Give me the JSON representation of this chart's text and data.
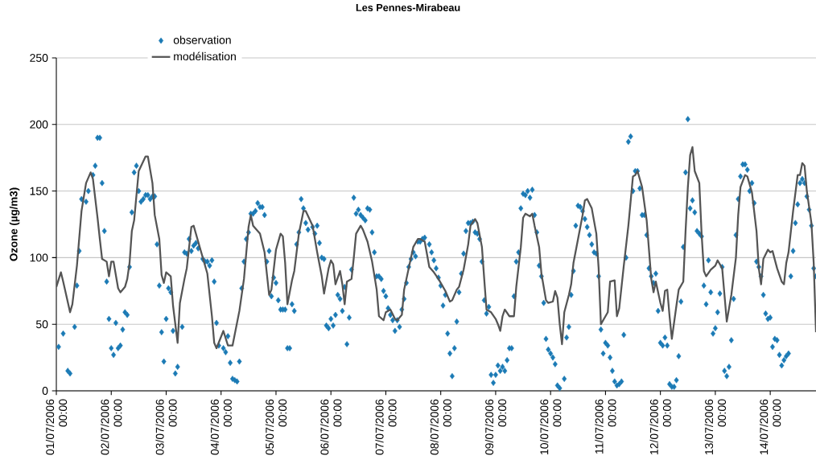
{
  "chart_data": {
    "type": "line",
    "title": "Les Pennes-Mirabeau",
    "ylabel": "Ozone (µg/m3)",
    "xlim": [
      "2006-07-01T00:00",
      "2006-07-14T20:00"
    ],
    "ylim": [
      0,
      250
    ],
    "xticks": [
      {
        "value": "2006-07-01T00:00",
        "label": "01/07/2006 00:00"
      },
      {
        "value": "2006-07-02T00:00",
        "label": "02/07/2006 00:00"
      },
      {
        "value": "2006-07-03T00:00",
        "label": "03/07/2006 00:00"
      },
      {
        "value": "2006-07-04T00:00",
        "label": "04/07/2006 00:00"
      },
      {
        "value": "2006-07-05T00:00",
        "label": "05/07/2006 00:00"
      },
      {
        "value": "2006-07-06T00:00",
        "label": "06/07/2006 00:00"
      },
      {
        "value": "2006-07-07T00:00",
        "label": "07/07/2006 00:00"
      },
      {
        "value": "2006-07-08T00:00",
        "label": "08/07/2006 00:00"
      },
      {
        "value": "2006-07-09T00:00",
        "label": "09/07/2006 00:00"
      },
      {
        "value": "2006-07-10T00:00",
        "label": "10/07/2006 00:00"
      },
      {
        "value": "2006-07-11T00:00",
        "label": "11/07/2006 00:00"
      },
      {
        "value": "2006-07-12T00:00",
        "label": "12/07/2006 00:00"
      },
      {
        "value": "2006-07-13T00:00",
        "label": "13/07/2006 00:00"
      },
      {
        "value": "2006-07-14T00:00",
        "label": "14/07/2006 00:00"
      }
    ],
    "yticks": [
      0,
      50,
      100,
      150,
      200,
      250
    ],
    "grid": "y",
    "legend": "top left",
    "series": [
      {
        "name": "observation",
        "type": "scatter",
        "marker": "diamond",
        "color": "#1b7ab5",
        "x": [
          "2006-07-01T01:00",
          "2006-07-01T03:00",
          "2006-07-01T05:00",
          "2006-07-01T06:00",
          "2006-07-01T08:00",
          "2006-07-01T09:00",
          "2006-07-01T10:00",
          "2006-07-01T11:00",
          "2006-07-01T13:00",
          "2006-07-01T14:00",
          "2006-07-01T16:00",
          "2006-07-01T17:00",
          "2006-07-01T18:00",
          "2006-07-01T19:00",
          "2006-07-01T20:00",
          "2006-07-01T21:00",
          "2006-07-01T22:00",
          "2006-07-01T23:00",
          "2006-07-02T00:00",
          "2006-07-02T01:00",
          "2006-07-02T02:00",
          "2006-07-02T03:00",
          "2006-07-02T04:00",
          "2006-07-02T05:00",
          "2006-07-02T06:00",
          "2006-07-02T07:00",
          "2006-07-02T08:00",
          "2006-07-02T09:00",
          "2006-07-02T10:00",
          "2006-07-02T11:00",
          "2006-07-02T12:00",
          "2006-07-02T13:00",
          "2006-07-02T14:00",
          "2006-07-02T15:00",
          "2006-07-02T16:00",
          "2006-07-02T17:00",
          "2006-07-02T18:00",
          "2006-07-02T19:00",
          "2006-07-02T20:00",
          "2006-07-02T21:00",
          "2006-07-02T22:00",
          "2006-07-02T23:00",
          "2006-07-03T00:00",
          "2006-07-03T01:00",
          "2006-07-03T02:00",
          "2006-07-03T03:00",
          "2006-07-03T04:00",
          "2006-07-03T05:00",
          "2006-07-03T07:00",
          "2006-07-03T08:00",
          "2006-07-03T09:00",
          "2006-07-03T10:00",
          "2006-07-03T11:00",
          "2006-07-03T12:00",
          "2006-07-03T13:00",
          "2006-07-03T14:00",
          "2006-07-03T16:00",
          "2006-07-03T17:00",
          "2006-07-03T18:00",
          "2006-07-03T19:00",
          "2006-07-03T20:00",
          "2006-07-03T21:00",
          "2006-07-03T22:00",
          "2006-07-03T23:00",
          "2006-07-04T01:00",
          "2006-07-04T02:00",
          "2006-07-04T03:00",
          "2006-07-04T04:00",
          "2006-07-04T05:00",
          "2006-07-04T06:00",
          "2006-07-04T07:00",
          "2006-07-04T08:00",
          "2006-07-04T09:00",
          "2006-07-04T10:00",
          "2006-07-04T11:00",
          "2006-07-04T12:00",
          "2006-07-04T13:00",
          "2006-07-04T14:00",
          "2006-07-04T15:00",
          "2006-07-04T16:00",
          "2006-07-04T17:00",
          "2006-07-04T18:00",
          "2006-07-04T19:00",
          "2006-07-04T20:00",
          "2006-07-04T21:00",
          "2006-07-04T22:00",
          "2006-07-04T23:00",
          "2006-07-05T00:00",
          "2006-07-05T01:00",
          "2006-07-05T02:00",
          "2006-07-05T03:00",
          "2006-07-05T04:00",
          "2006-07-05T05:00",
          "2006-07-05T06:00",
          "2006-07-05T07:00",
          "2006-07-05T08:00",
          "2006-07-05T09:00",
          "2006-07-05T10:00",
          "2006-07-05T11:00",
          "2006-07-05T12:00",
          "2006-07-05T13:00",
          "2006-07-05T14:00",
          "2006-07-05T16:00",
          "2006-07-05T17:00",
          "2006-07-05T18:00",
          "2006-07-05T19:00",
          "2006-07-05T20:00",
          "2006-07-05T21:00",
          "2006-07-05T22:00",
          "2006-07-05T23:00",
          "2006-07-06T00:00",
          "2006-07-06T01:00",
          "2006-07-06T02:00",
          "2006-07-06T03:00",
          "2006-07-06T04:00",
          "2006-07-06T05:00",
          "2006-07-06T06:00",
          "2006-07-06T07:00",
          "2006-07-06T08:00",
          "2006-07-06T09:00",
          "2006-07-06T10:00",
          "2006-07-06T11:00",
          "2006-07-06T12:00",
          "2006-07-06T13:00",
          "2006-07-06T14:00",
          "2006-07-06T15:00",
          "2006-07-06T16:00",
          "2006-07-06T17:00",
          "2006-07-06T18:00",
          "2006-07-06T19:00",
          "2006-07-06T20:00",
          "2006-07-06T21:00",
          "2006-07-06T22:00",
          "2006-07-06T23:00",
          "2006-07-07T00:00",
          "2006-07-07T01:00",
          "2006-07-07T02:00",
          "2006-07-07T03:00",
          "2006-07-07T04:00",
          "2006-07-07T05:00",
          "2006-07-07T06:00",
          "2006-07-07T07:00",
          "2006-07-07T08:00",
          "2006-07-07T09:00",
          "2006-07-07T10:00",
          "2006-07-07T11:00",
          "2006-07-07T12:00",
          "2006-07-07T13:00",
          "2006-07-07T14:00",
          "2006-07-07T15:00",
          "2006-07-07T16:00",
          "2006-07-07T17:00",
          "2006-07-07T19:00",
          "2006-07-07T20:00",
          "2006-07-07T21:00",
          "2006-07-07T22:00",
          "2006-07-07T23:00",
          "2006-07-08T00:00",
          "2006-07-08T01:00",
          "2006-07-08T02:00",
          "2006-07-08T03:00",
          "2006-07-08T04:00",
          "2006-07-08T05:00",
          "2006-07-08T06:00",
          "2006-07-08T07:00",
          "2006-07-08T08:00",
          "2006-07-08T09:00",
          "2006-07-08T10:00",
          "2006-07-08T11:00",
          "2006-07-08T12:00",
          "2006-07-08T13:00",
          "2006-07-08T14:00",
          "2006-07-08T15:00",
          "2006-07-08T16:00",
          "2006-07-08T17:00",
          "2006-07-08T18:00",
          "2006-07-08T19:00",
          "2006-07-08T20:00",
          "2006-07-08T21:00",
          "2006-07-08T22:00",
          "2006-07-08T23:00",
          "2006-07-09T00:00",
          "2006-07-09T01:00",
          "2006-07-09T02:00",
          "2006-07-09T03:00",
          "2006-07-09T04:00",
          "2006-07-09T05:00",
          "2006-07-09T06:00",
          "2006-07-09T07:00",
          "2006-07-09T08:00",
          "2006-07-09T09:00",
          "2006-07-09T10:00",
          "2006-07-09T11:00",
          "2006-07-09T12:00",
          "2006-07-09T13:00",
          "2006-07-09T14:00",
          "2006-07-09T15:00",
          "2006-07-09T16:00",
          "2006-07-09T17:00",
          "2006-07-09T18:00",
          "2006-07-09T19:00",
          "2006-07-09T20:00",
          "2006-07-09T21:00",
          "2006-07-09T22:00",
          "2006-07-09T23:00",
          "2006-07-10T00:00",
          "2006-07-10T01:00",
          "2006-07-10T02:00",
          "2006-07-10T03:00",
          "2006-07-10T04:00",
          "2006-07-10T06:00",
          "2006-07-10T07:00",
          "2006-07-10T08:00",
          "2006-07-10T09:00",
          "2006-07-10T10:00",
          "2006-07-10T11:00",
          "2006-07-10T12:00",
          "2006-07-10T13:00",
          "2006-07-10T14:00",
          "2006-07-10T15:00",
          "2006-07-10T16:00",
          "2006-07-10T17:00",
          "2006-07-10T18:00",
          "2006-07-10T19:00",
          "2006-07-10T20:00",
          "2006-07-10T21:00",
          "2006-07-10T22:00",
          "2006-07-10T23:00",
          "2006-07-11T00:00",
          "2006-07-11T01:00",
          "2006-07-11T02:00",
          "2006-07-11T03:00",
          "2006-07-11T04:00",
          "2006-07-11T05:00",
          "2006-07-11T06:00",
          "2006-07-11T07:00",
          "2006-07-11T08:00",
          "2006-07-11T09:00",
          "2006-07-11T10:00",
          "2006-07-11T11:00",
          "2006-07-11T12:00",
          "2006-07-11T13:00",
          "2006-07-11T14:00",
          "2006-07-11T15:00",
          "2006-07-11T16:00",
          "2006-07-11T17:00",
          "2006-07-11T18:00",
          "2006-07-11T19:00",
          "2006-07-11T20:00",
          "2006-07-11T21:00",
          "2006-07-11T22:00",
          "2006-07-11T23:00",
          "2006-07-12T00:00",
          "2006-07-12T01:00",
          "2006-07-12T02:00",
          "2006-07-12T03:00",
          "2006-07-12T04:00",
          "2006-07-12T05:00",
          "2006-07-12T06:00",
          "2006-07-12T07:00",
          "2006-07-12T08:00",
          "2006-07-12T09:00",
          "2006-07-12T10:00",
          "2006-07-12T11:00",
          "2006-07-12T12:00",
          "2006-07-12T13:00",
          "2006-07-12T14:00",
          "2006-07-12T15:00",
          "2006-07-12T16:00",
          "2006-07-12T17:00",
          "2006-07-12T18:00",
          "2006-07-12T19:00",
          "2006-07-12T20:00",
          "2006-07-12T21:00",
          "2006-07-12T22:00",
          "2006-07-12T23:00",
          "2006-07-13T00:00",
          "2006-07-13T01:00",
          "2006-07-13T02:00",
          "2006-07-13T03:00",
          "2006-07-13T04:00",
          "2006-07-13T05:00",
          "2006-07-13T06:00",
          "2006-07-13T07:00",
          "2006-07-13T08:00",
          "2006-07-13T09:00",
          "2006-07-13T10:00",
          "2006-07-13T11:00",
          "2006-07-13T12:00",
          "2006-07-13T13:00",
          "2006-07-13T14:00",
          "2006-07-13T15:00",
          "2006-07-13T16:00",
          "2006-07-13T17:00",
          "2006-07-13T18:00",
          "2006-07-13T19:00",
          "2006-07-13T20:00",
          "2006-07-13T21:00",
          "2006-07-13T22:00",
          "2006-07-13T23:00",
          "2006-07-14T00:00",
          "2006-07-14T01:00",
          "2006-07-14T02:00",
          "2006-07-14T03:00",
          "2006-07-14T04:00",
          "2006-07-14T05:00",
          "2006-07-14T06:00",
          "2006-07-14T07:00",
          "2006-07-14T08:00",
          "2006-07-14T09:00",
          "2006-07-14T10:00",
          "2006-07-14T11:00",
          "2006-07-14T12:00",
          "2006-07-14T13:00",
          "2006-07-14T14:00",
          "2006-07-14T15:00",
          "2006-07-14T16:00",
          "2006-07-14T17:00",
          "2006-07-14T18:00",
          "2006-07-14T19:00",
          "2006-07-14T20:00"
        ],
        "values": [
          33,
          43,
          15,
          13,
          48,
          79,
          105,
          144,
          142,
          150,
          162,
          169,
          190,
          190,
          156,
          120,
          82,
          54,
          32,
          27,
          51,
          32,
          34,
          46,
          59,
          57,
          93,
          134,
          164,
          169,
          150,
          142,
          144,
          147,
          147,
          144,
          146,
          146,
          110,
          79,
          44,
          22,
          54,
          77,
          74,
          45,
          13,
          18,
          48,
          104,
          103,
          114,
          105,
          109,
          111,
          107,
          99,
          97,
          97,
          94,
          98,
          82,
          51,
          34,
          32,
          29,
          41,
          21,
          9,
          8,
          7,
          22,
          77,
          97,
          114,
          119,
          133,
          133,
          135,
          141,
          138,
          138,
          132,
          97,
          105,
          71,
          85,
          81,
          68,
          61,
          61,
          61,
          32,
          32,
          65,
          60,
          110,
          119,
          144,
          137,
          126,
          121,
          123,
          118,
          124,
          111,
          100,
          99,
          49,
          47,
          54,
          49,
          57,
          72,
          69,
          60,
          78,
          35,
          55,
          91,
          145,
          133,
          136,
          132,
          130,
          128,
          137,
          136,
          119,
          104,
          86,
          86,
          84,
          75,
          71,
          62,
          57,
          53,
          45,
          53,
          48,
          61,
          69,
          81,
          93,
          99,
          104,
          101,
          112,
          112,
          114,
          115,
          110,
          104,
          98,
          92,
          85,
          79,
          64,
          72,
          43,
          28,
          11,
          32,
          52,
          74,
          88,
          103,
          120,
          126,
          126,
          127,
          119,
          118,
          114,
          97,
          68,
          58,
          63,
          12,
          6,
          12,
          19,
          15,
          18,
          15,
          23,
          32,
          32,
          71,
          97,
          104,
          137,
          148,
          147,
          150,
          145,
          151,
          132,
          119,
          94,
          86,
          66,
          39,
          31,
          28,
          25,
          20,
          4,
          2,
          9,
          40,
          48,
          72,
          90,
          124,
          139,
          138,
          135,
          129,
          123,
          117,
          110,
          104,
          103,
          86,
          46,
          28,
          36,
          34,
          25,
          15,
          7,
          4,
          5,
          7,
          42,
          100,
          187,
          191,
          150,
          165,
          165,
          152,
          132,
          132,
          117,
          92,
          86,
          81,
          88,
          60,
          36,
          34,
          40,
          34,
          5,
          3,
          3,
          8,
          26,
          67,
          108,
          164,
          204,
          137,
          143,
          134,
          120,
          118,
          116,
          79,
          65,
          98,
          74,
          43,
          47,
          59,
          73,
          93,
          15,
          11,
          18,
          38,
          69,
          117,
          144,
          161,
          170,
          170,
          166,
          150,
          156,
          141,
          97,
          93,
          86,
          72,
          58,
          54,
          55,
          33,
          39,
          38,
          27,
          19,
          23,
          26,
          28,
          86,
          105,
          126,
          140,
          156,
          159,
          156,
          146,
          136,
          124,
          92,
          86
        ]
      },
      {
        "name": "modélisation",
        "type": "line",
        "line_style": "solid",
        "color": "#555555",
        "x": [
          "2006-07-01T00:00",
          "2006-07-01T02:00",
          "2006-07-01T03:00",
          "2006-07-01T06:00",
          "2006-07-01T07:00",
          "2006-07-01T09:00",
          "2006-07-01T11:00",
          "2006-07-01T13:00",
          "2006-07-01T15:00",
          "2006-07-01T16:00",
          "2006-07-01T18:00",
          "2006-07-01T19:00",
          "2006-07-01T20:00",
          "2006-07-01T22:00",
          "2006-07-01T23:00",
          "2006-07-02T00:00",
          "2006-07-02T01:00",
          "2006-07-02T03:00",
          "2006-07-02T04:00",
          "2006-07-02T06:00",
          "2006-07-02T07:00",
          "2006-07-02T08:00",
          "2006-07-02T09:00",
          "2006-07-02T10:00",
          "2006-07-02T12:00",
          "2006-07-02T15:00",
          "2006-07-02T16:00",
          "2006-07-02T18:00",
          "2006-07-02T19:00",
          "2006-07-02T21:00",
          "2006-07-02T22:00",
          "2006-07-02T23:00",
          "2006-07-03T00:00",
          "2006-07-03T02:00",
          "2006-07-03T03:00",
          "2006-07-03T05:00",
          "2006-07-03T06:00",
          "2006-07-03T08:00",
          "2006-07-03T09:00",
          "2006-07-03T11:00",
          "2006-07-03T12:00",
          "2006-07-03T15:00",
          "2006-07-03T18:00",
          "2006-07-03T20:00",
          "2006-07-03T21:00",
          "2006-07-03T22:00",
          "2006-07-04T01:00",
          "2006-07-04T03:00",
          "2006-07-04T05:00",
          "2006-07-04T08:00",
          "2006-07-04T10:00",
          "2006-07-04T12:00",
          "2006-07-04T13:00",
          "2006-07-04T14:00",
          "2006-07-04T17:00",
          "2006-07-04T19:00",
          "2006-07-04T21:00",
          "2006-07-04T22:00",
          "2006-07-05T00:00",
          "2006-07-05T02:00",
          "2006-07-05T03:00",
          "2006-07-05T04:00",
          "2006-07-05T05:00",
          "2006-07-05T07:00",
          "2006-07-05T08:00",
          "2006-07-05T10:00",
          "2006-07-05T12:00",
          "2006-07-05T13:00",
          "2006-07-05T16:00",
          "2006-07-05T18:00",
          "2006-07-05T20:00",
          "2006-07-05T21:00",
          "2006-07-05T23:00",
          "2006-07-06T00:00",
          "2006-07-06T01:00",
          "2006-07-06T02:00",
          "2006-07-06T04:00",
          "2006-07-06T05:00",
          "2006-07-06T06:00",
          "2006-07-06T07:00",
          "2006-07-06T09:00",
          "2006-07-06T10:00",
          "2006-07-06T11:00",
          "2006-07-06T13:00",
          "2006-07-06T14:00",
          "2006-07-06T16:00",
          "2006-07-06T18:00",
          "2006-07-06T20:00",
          "2006-07-06T21:00",
          "2006-07-06T23:00",
          "2006-07-07T00:00",
          "2006-07-07T02:00",
          "2006-07-07T04:00",
          "2006-07-07T05:00",
          "2006-07-07T07:00",
          "2006-07-07T08:00",
          "2006-07-07T10:00",
          "2006-07-07T12:00",
          "2006-07-07T14:00",
          "2006-07-07T15:00",
          "2006-07-07T17:00",
          "2006-07-07T19:00",
          "2006-07-07T21:00",
          "2006-07-07T23:00",
          "2006-07-08T02:00",
          "2006-07-08T04:00",
          "2006-07-08T05:00",
          "2006-07-08T07:00",
          "2006-07-08T08:00",
          "2006-07-08T10:00",
          "2006-07-08T12:00",
          "2006-07-08T13:00",
          "2006-07-08T15:00",
          "2006-07-08T16:00",
          "2006-07-08T18:00",
          "2006-07-08T19:00",
          "2006-07-08T20:00",
          "2006-07-08T22:00",
          "2006-07-09T00:00",
          "2006-07-09T01:00",
          "2006-07-09T02:00",
          "2006-07-09T03:00",
          "2006-07-09T04:00",
          "2006-07-09T06:00",
          "2006-07-09T08:00",
          "2006-07-09T09:00",
          "2006-07-09T11:00",
          "2006-07-09T12:00",
          "2006-07-09T13:00",
          "2006-07-09T15:00",
          "2006-07-09T16:00",
          "2006-07-09T17:00",
          "2006-07-09T19:00",
          "2006-07-09T20:00",
          "2006-07-09T22:00",
          "2006-07-09T23:00",
          "2006-07-10T01:00",
          "2006-07-10T02:00",
          "2006-07-10T03:00",
          "2006-07-10T04:00",
          "2006-07-10T05:00",
          "2006-07-10T06:00",
          "2006-07-10T08:00",
          "2006-07-10T09:00",
          "2006-07-10T10:00",
          "2006-07-10T12:00",
          "2006-07-10T14:00",
          "2006-07-10T15:00",
          "2006-07-10T16:00",
          "2006-07-10T18:00",
          "2006-07-10T20:00",
          "2006-07-10T21:00",
          "2006-07-10T22:00",
          "2006-07-11T00:00",
          "2006-07-11T01:00",
          "2006-07-11T02:00",
          "2006-07-11T04:00",
          "2006-07-11T05:00",
          "2006-07-11T06:00",
          "2006-07-11T08:00",
          "2006-07-11T10:00",
          "2006-07-11T12:00",
          "2006-07-11T13:00",
          "2006-07-11T14:00",
          "2006-07-11T16:00",
          "2006-07-11T18:00",
          "2006-07-11T20:00",
          "2006-07-11T21:00",
          "2006-07-11T22:00",
          "2006-07-12T00:00",
          "2006-07-12T01:00",
          "2006-07-12T02:00",
          "2006-07-12T03:00",
          "2006-07-12T04:00",
          "2006-07-12T05:00",
          "2006-07-12T07:00",
          "2006-07-12T08:00",
          "2006-07-12T10:00",
          "2006-07-12T11:00",
          "2006-07-12T12:00",
          "2006-07-12T13:00",
          "2006-07-12T14:00",
          "2006-07-12T15:00",
          "2006-07-12T17:00",
          "2006-07-12T18:00",
          "2006-07-12T19:00",
          "2006-07-12T20:00",
          "2006-07-12T22:00",
          "2006-07-13T00:00",
          "2006-07-13T01:00",
          "2006-07-13T03:00",
          "2006-07-13T04:00",
          "2006-07-13T05:00",
          "2006-07-13T07:00",
          "2006-07-13T09:00",
          "2006-07-13T10:00",
          "2006-07-13T11:00",
          "2006-07-13T13:00",
          "2006-07-13T14:00",
          "2006-07-13T16:00",
          "2006-07-13T18:00",
          "2006-07-13T19:00",
          "2006-07-13T20:00",
          "2006-07-13T21:00",
          "2006-07-13T23:00",
          "2006-07-14T00:00",
          "2006-07-14T01:00",
          "2006-07-14T03:00",
          "2006-07-14T05:00",
          "2006-07-14T06:00",
          "2006-07-14T07:00",
          "2006-07-14T08:00",
          "2006-07-14T10:00",
          "2006-07-14T12:00",
          "2006-07-14T13:00",
          "2006-07-14T14:00",
          "2006-07-14T15:00",
          "2006-07-14T16:00",
          "2006-07-14T18:00",
          "2006-07-14T19:00",
          "2006-07-14T20:00"
        ],
        "values": [
          78,
          89,
          82,
          59,
          65,
          94,
          135,
          156,
          164,
          159,
          130,
          114,
          99,
          97,
          86,
          97,
          97,
          77,
          74,
          78,
          84,
          96,
          120,
          128,
          165,
          176,
          176,
          156,
          132,
          114,
          87,
          81,
          89,
          86,
          64,
          36,
          66,
          84,
          92,
          123,
          124,
          106,
          88,
          56,
          36,
          32,
          45,
          34,
          34,
          60,
          84,
          123,
          132,
          124,
          118,
          104,
          72,
          76,
          106,
          118,
          116,
          96,
          65,
          83,
          90,
          118,
          135,
          135,
          124,
          104,
          86,
          73,
          92,
          98,
          95,
          80,
          90,
          80,
          65,
          82,
          84,
          100,
          118,
          124,
          121,
          112,
          97,
          76,
          56,
          53,
          59,
          61,
          54,
          53,
          57,
          76,
          92,
          108,
          114,
          114,
          112,
          93,
          89,
          84,
          75,
          67,
          68,
          76,
          78,
          91,
          110,
          124,
          129,
          126,
          108,
          84,
          61,
          59,
          54,
          50,
          45,
          56,
          61,
          56,
          56,
          78,
          108,
          130,
          133,
          131,
          133,
          124,
          108,
          88,
          68,
          66,
          67,
          75,
          70,
          50,
          35,
          59,
          72,
          80,
          96,
          114,
          132,
          143,
          144,
          137,
          118,
          92,
          50,
          56,
          59,
          82,
          83,
          56,
          62,
          94,
          124,
          161,
          162,
          165,
          153,
          128,
          84,
          74,
          82,
          66,
          60,
          75,
          76,
          56,
          39,
          64,
          76,
          82,
          120,
          153,
          177,
          183,
          165,
          156,
          118,
          90,
          86,
          91,
          94,
          98,
          92,
          72,
          52,
          72,
          100,
          132,
          153,
          162,
          161,
          149,
          120,
          92,
          80,
          99,
          106,
          104,
          105,
          92,
          82,
          80,
          96,
          104,
          135,
          162,
          162,
          171,
          169,
          150,
          126,
          96,
          44
        ]
      }
    ]
  }
}
